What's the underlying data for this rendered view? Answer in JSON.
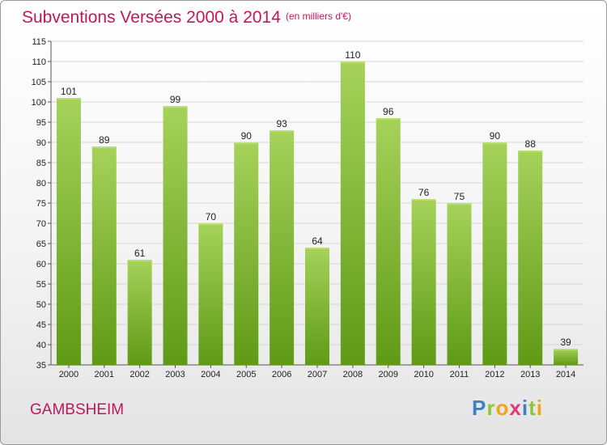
{
  "header": {
    "title": "Subventions Versées 2000 à 2014",
    "unit_note": "(en milliers d'€)"
  },
  "footer": {
    "commune": "GAMBSHEIM",
    "logo": "Proxiti"
  },
  "colors": {
    "accent": "#c0185a",
    "bar_top": "#a6d25a",
    "bar_bottom": "#5f9a16"
  },
  "chart_data": {
    "type": "bar",
    "title": "Subventions Versées 2000 à 2014",
    "subtitle": "(en milliers d'€)",
    "categories": [
      "2000",
      "2001",
      "2002",
      "2003",
      "2004",
      "2005",
      "2006",
      "2007",
      "2008",
      "2009",
      "2010",
      "2011",
      "2012",
      "2013",
      "2014"
    ],
    "values": [
      101,
      89,
      61,
      99,
      70,
      90,
      93,
      64,
      110,
      96,
      76,
      75,
      90,
      88,
      39
    ],
    "ylim": [
      35,
      115
    ],
    "yticks": [
      35,
      40,
      45,
      50,
      55,
      60,
      65,
      70,
      75,
      80,
      85,
      90,
      95,
      100,
      105,
      110,
      115
    ],
    "grid": true,
    "xlabel": "",
    "ylabel": ""
  }
}
